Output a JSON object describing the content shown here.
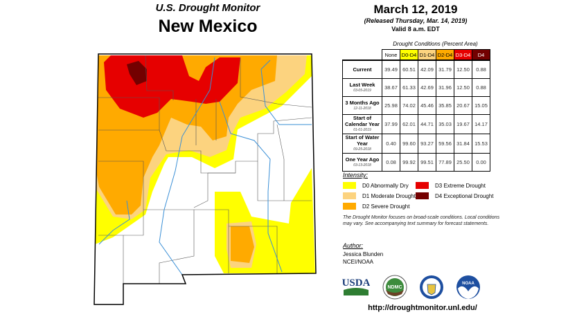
{
  "header": {
    "title": "U.S. Drought Monitor",
    "state": "New Mexico",
    "date": "March 12, 2019",
    "released": "(Released Thursday, Mar. 14, 2019)",
    "valid": "Valid 8 a.m. EDT"
  },
  "table": {
    "caption": "Drought Conditions (Percent Area)",
    "columns": [
      {
        "label": "None",
        "color": "#ffffff"
      },
      {
        "label": "D0-D4",
        "color": "#ffff00"
      },
      {
        "label": "D1-D4",
        "color": "#fcd37f"
      },
      {
        "label": "D2-D4",
        "color": "#ffaa00"
      },
      {
        "label": "D3-D4",
        "color": "#e60000"
      },
      {
        "label": "D4",
        "color": "#730000"
      }
    ],
    "rows": [
      {
        "label": "Current",
        "date": "",
        "values": [
          "39.49",
          "60.51",
          "42.09",
          "31.79",
          "12.50",
          "0.88"
        ]
      },
      {
        "label": "Last Week",
        "date": "03-05-2019",
        "values": [
          "38.67",
          "61.33",
          "42.69",
          "31.96",
          "12.50",
          "0.88"
        ]
      },
      {
        "label": "3 Months Ago",
        "date": "12-11-2018",
        "values": [
          "25.98",
          "74.02",
          "45.46",
          "35.85",
          "20.67",
          "15.05"
        ]
      },
      {
        "label": "Start of Calendar Year",
        "date": "01-01-2019",
        "values": [
          "37.99",
          "62.01",
          "44.71",
          "35.03",
          "19.67",
          "14.17"
        ]
      },
      {
        "label": "Start of Water Year",
        "date": "09-25-2018",
        "values": [
          "0.40",
          "99.60",
          "93.27",
          "59.56",
          "31.84",
          "15.53"
        ]
      },
      {
        "label": "One Year Ago",
        "date": "03-13-2018",
        "values": [
          "0.08",
          "99.92",
          "99.51",
          "77.89",
          "25.50",
          "0.00"
        ]
      }
    ]
  },
  "legend": {
    "title": "Intensity:",
    "items": [
      {
        "label": "D0 Abnormally Dry",
        "color": "#ffff00"
      },
      {
        "label": "D1 Moderate Drought",
        "color": "#fcd37f"
      },
      {
        "label": "D2 Severe Drought",
        "color": "#ffaa00"
      },
      {
        "label": "D3 Extreme Drought",
        "color": "#e60000"
      },
      {
        "label": "D4 Exceptional Drought",
        "color": "#730000"
      }
    ]
  },
  "note": "The Drought Monitor focuses on broad-scale conditions. Local conditions may vary. See accompanying text summary for forecast statements.",
  "author": {
    "heading": "Author:",
    "name": "Jessica Blunden",
    "org": "NCEI/NOAA"
  },
  "logos": {
    "usda": "USDA",
    "ndmc": "NDMC",
    "noaa": "NOAA"
  },
  "url": "http://droughtmonitor.unl.edu/"
}
